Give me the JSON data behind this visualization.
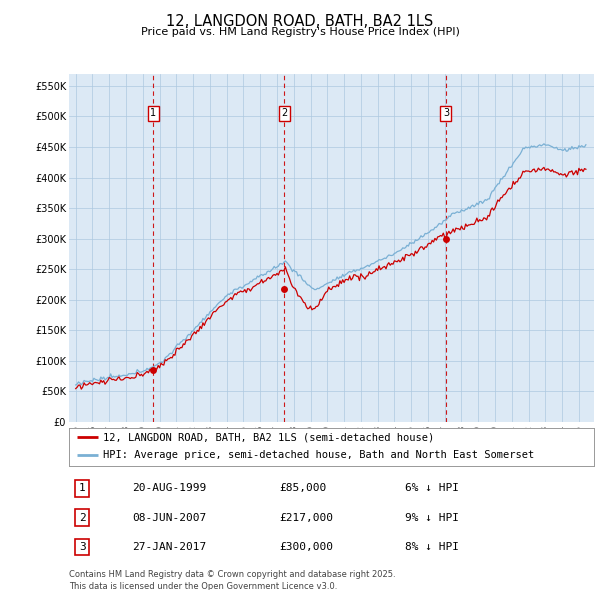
{
  "title": "12, LANGDON ROAD, BATH, BA2 1LS",
  "subtitle": "Price paid vs. HM Land Registry's House Price Index (HPI)",
  "ylim": [
    0,
    570000
  ],
  "yticks": [
    0,
    50000,
    100000,
    150000,
    200000,
    250000,
    300000,
    350000,
    400000,
    450000,
    500000,
    550000
  ],
  "sale_color": "#cc0000",
  "hpi_color": "#7ab0d4",
  "sale_label": "12, LANGDON ROAD, BATH, BA2 1LS (semi-detached house)",
  "hpi_label": "HPI: Average price, semi-detached house, Bath and North East Somerset",
  "transactions": [
    {
      "num": 1,
      "date": "20-AUG-1999",
      "price": 85000,
      "pct": "6%",
      "dir": "↓",
      "year": 1999.63
    },
    {
      "num": 2,
      "date": "08-JUN-2007",
      "price": 217000,
      "pct": "9%",
      "dir": "↓",
      "year": 2007.44
    },
    {
      "num": 3,
      "date": "27-JAN-2017",
      "price": 300000,
      "pct": "8%",
      "dir": "↓",
      "year": 2017.07
    }
  ],
  "footnote": "Contains HM Land Registry data © Crown copyright and database right 2025.\nThis data is licensed under the Open Government Licence v3.0.",
  "chart_bg": "#dce9f5",
  "grid_color": "#aec8e0"
}
